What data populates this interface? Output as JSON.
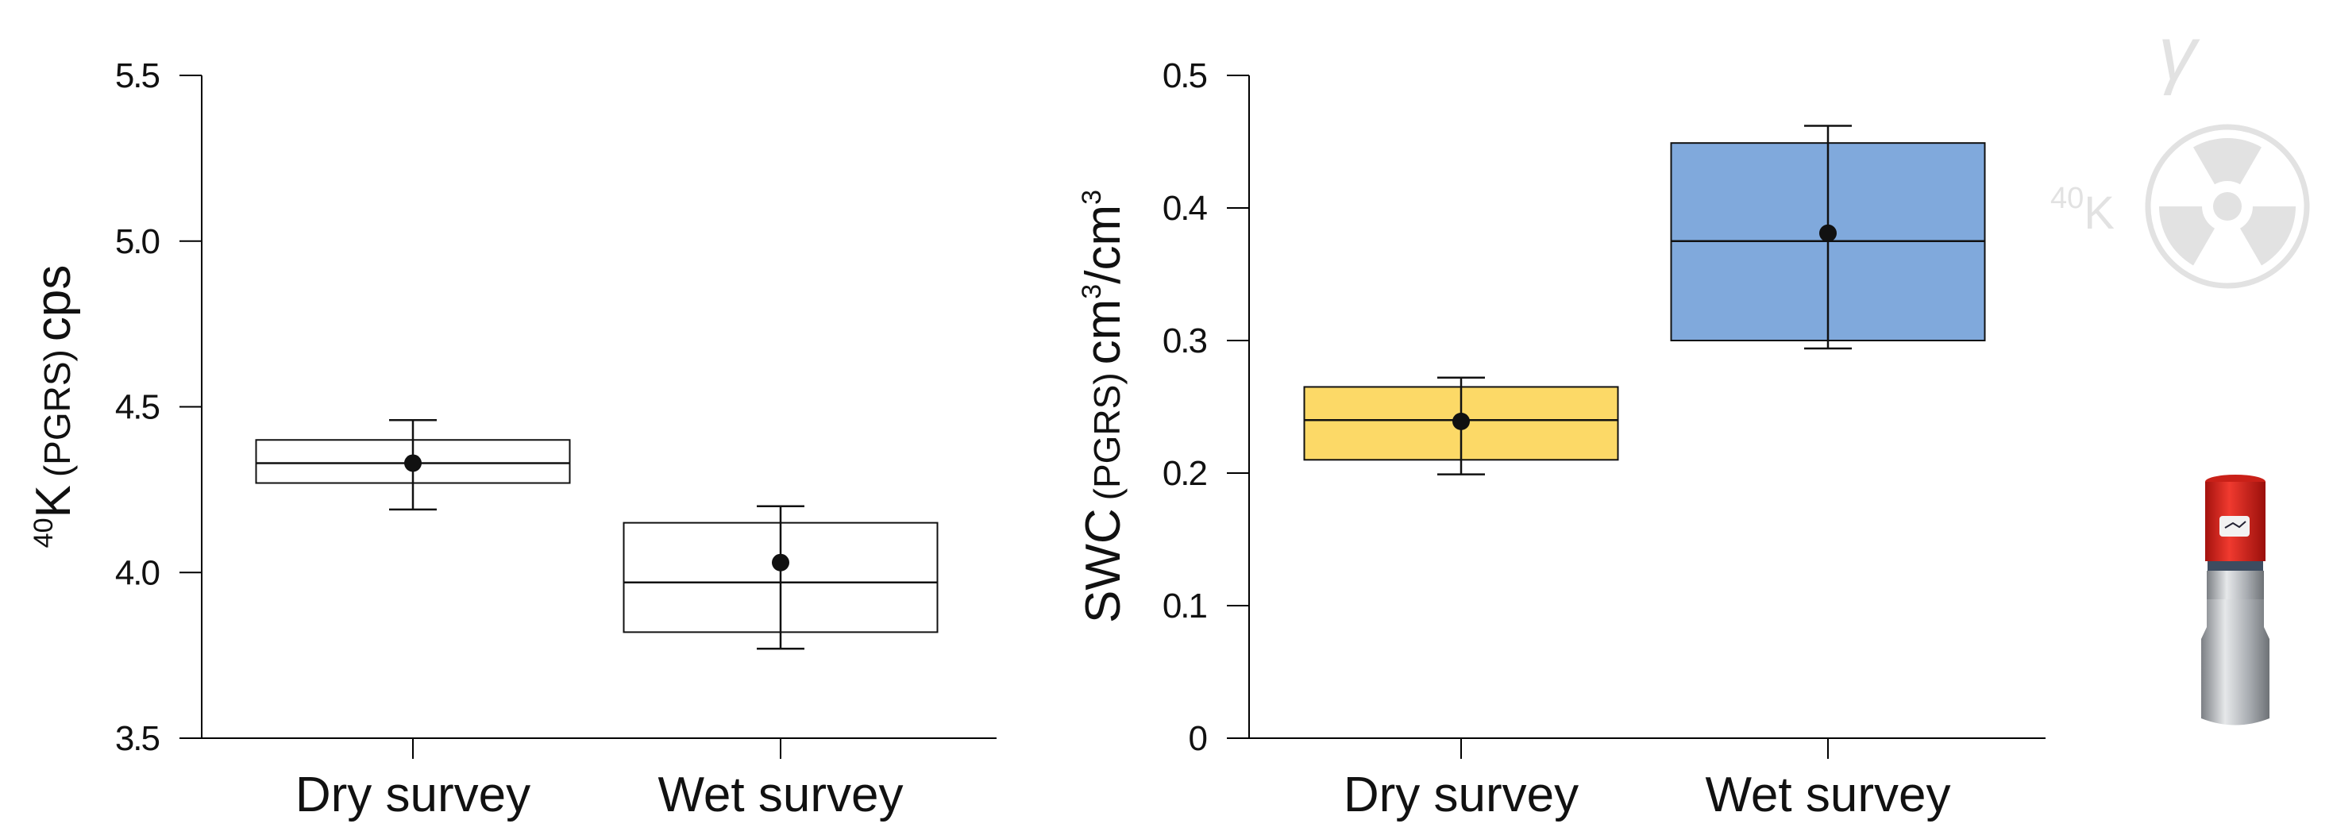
{
  "chart_data": [
    {
      "type": "box",
      "ylabel": {
        "sup": "40",
        "main": "K",
        "small": "(PGRS)",
        "unit": "cps"
      },
      "categories": [
        "Dry survey",
        "Wet survey"
      ],
      "yticks": [
        "3.5",
        "4.0",
        "4.5",
        "5.0",
        "5.5"
      ],
      "ylim": [
        3.5,
        5.5
      ],
      "boxes": [
        {
          "category": "Dry survey",
          "q1": 4.27,
          "median": 4.33,
          "q3": 4.4,
          "whisker_low": 4.19,
          "whisker_high": 4.46,
          "mean": 4.33,
          "color": "#ffffff"
        },
        {
          "category": "Wet survey",
          "q1": 3.82,
          "median": 3.97,
          "q3": 4.15,
          "whisker_low": 3.77,
          "whisker_high": 4.2,
          "mean": 4.03,
          "color": "#ffffff"
        }
      ]
    },
    {
      "type": "box",
      "ylabel": {
        "main": "SWC",
        "small": "(PGRS)",
        "unit": "cm",
        "sup1": "3",
        "unit2": "/cm",
        "sup2": "3"
      },
      "categories": [
        "Dry survey",
        "Wet survey"
      ],
      "yticks": [
        "0",
        "0.1",
        "0.2",
        "0.3",
        "0.4",
        "0.5"
      ],
      "ylim": [
        0,
        0.5
      ],
      "boxes": [
        {
          "category": "Dry survey",
          "q1": 0.21,
          "median": 0.24,
          "q3": 0.265,
          "whisker_low": 0.199,
          "whisker_high": 0.272,
          "mean": 0.239,
          "color": "#fcd967"
        },
        {
          "category": "Wet survey",
          "q1": 0.3,
          "median": 0.375,
          "q3": 0.449,
          "whisker_low": 0.294,
          "whisker_high": 0.462,
          "mean": 0.381,
          "color": "#80a9dc"
        }
      ]
    }
  ],
  "decoration": {
    "gamma": "γ",
    "isotope_sup": "40",
    "isotope": "K",
    "symbol_color": "#e2e2e2",
    "sensor_cap_color": "#e0261f",
    "sensor_body_color": "#b4b8bc"
  }
}
